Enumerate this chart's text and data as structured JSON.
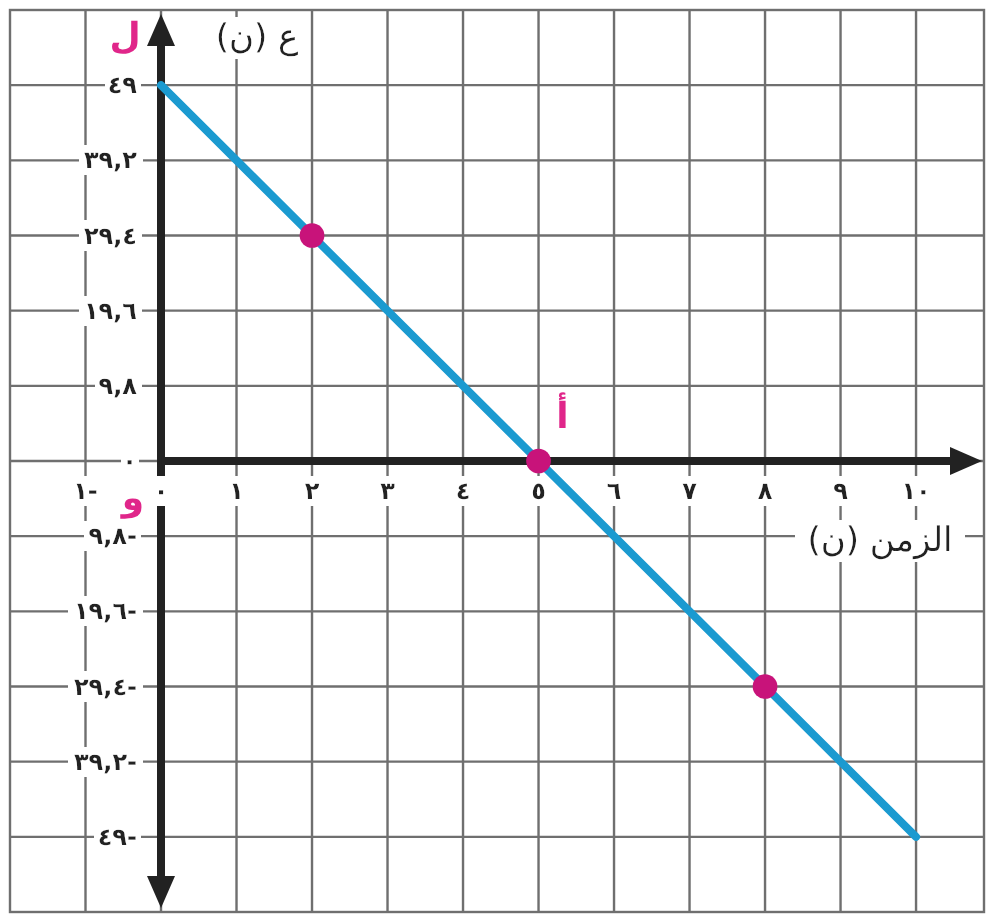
{
  "chart_data": {
    "type": "line",
    "xlabel": "الزمن (ن)",
    "ylabel": "ع (ن)",
    "xlim": [
      -2,
      10.9
    ],
    "ylim": [
      -58.8,
      58.8
    ],
    "xticks": [
      {
        "value": -1,
        "label": "١-"
      },
      {
        "value": 0,
        "label": "٠"
      },
      {
        "value": 1,
        "label": "١"
      },
      {
        "value": 2,
        "label": "٢"
      },
      {
        "value": 3,
        "label": "٣"
      },
      {
        "value": 4,
        "label": "٤"
      },
      {
        "value": 5,
        "label": "٥"
      },
      {
        "value": 6,
        "label": "٦"
      },
      {
        "value": 7,
        "label": "٧"
      },
      {
        "value": 8,
        "label": "٨"
      },
      {
        "value": 9,
        "label": "٩"
      },
      {
        "value": 10,
        "label": "١٠"
      }
    ],
    "yticks": [
      {
        "value": -49,
        "label": "٤٩-"
      },
      {
        "value": -39.2,
        "label": "٣٩,٢-"
      },
      {
        "value": -29.4,
        "label": "٢٩,٤-"
      },
      {
        "value": -19.6,
        "label": "١٩,٦-"
      },
      {
        "value": -9.8,
        "label": "٩,٨-"
      },
      {
        "value": 0,
        "label": "٠"
      },
      {
        "value": 9.8,
        "label": "٩,٨"
      },
      {
        "value": 19.6,
        "label": "١٩,٦"
      },
      {
        "value": 29.4,
        "label": "٢٩,٤"
      },
      {
        "value": 39.2,
        "label": "٣٩,٢"
      },
      {
        "value": 49,
        "label": "٤٩"
      }
    ],
    "grid": true,
    "series": [
      {
        "x": [
          0,
          10
        ],
        "values": [
          49,
          -49
        ],
        "color": "#1b9ad0"
      },
      {
        "type": "scatter",
        "x": [
          2,
          5,
          8
        ],
        "values": [
          29.4,
          0,
          -29.4
        ],
        "color": "#c8137a",
        "marker": "circle"
      }
    ],
    "annotations": [
      {
        "text": "ل",
        "x": 0,
        "y": 49
      },
      {
        "text": "أ",
        "x": 5,
        "y": 0
      },
      "و"
    ]
  }
}
